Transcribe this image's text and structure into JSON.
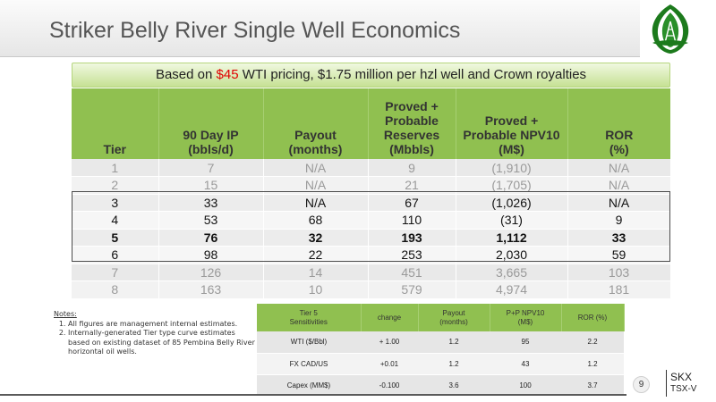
{
  "title": "Striker Belly River Single Well Economics",
  "banner": {
    "prefix": "Based on ",
    "price": "$45",
    "suffix": " WTI pricing, $1.75 million per hzl well and Crown royalties"
  },
  "colors": {
    "header_green": "#90c050",
    "price_red": "#e00000"
  },
  "main_table": {
    "headers": [
      "Tier",
      "90 Day IP\n(bbls/d)",
      "Payout\n(months)",
      "Proved +\nProbable\nReserves\n(Mbbls)",
      "Proved +\nProbable NPV10\n(M$)",
      "ROR\n(%)"
    ],
    "rows": [
      [
        "1",
        "7",
        "N/A",
        "9",
        "(1,910)",
        "N/A"
      ],
      [
        "2",
        "15",
        "N/A",
        "21",
        "(1,705)",
        "N/A"
      ],
      [
        "3",
        "33",
        "N/A",
        "67",
        "(1,026)",
        "N/A"
      ],
      [
        "4",
        "53",
        "68",
        "110",
        "(31)",
        "9"
      ],
      [
        "5",
        "76",
        "32",
        "193",
        "1,112",
        "33"
      ],
      [
        "6",
        "98",
        "22",
        "253",
        "2,030",
        "59"
      ],
      [
        "7",
        "126",
        "14",
        "451",
        "3,665",
        "103"
      ],
      [
        "8",
        "163",
        "10",
        "579",
        "4,974",
        "181"
      ]
    ]
  },
  "notes": {
    "title": "Notes:",
    "items": [
      "All figures are management internal estimates.",
      "Internally-generated Tier type curve estimates based on existing dataset of 85 Pembina Belly River horizontal oil wells."
    ]
  },
  "sensitivity_table": {
    "headers": [
      "Tier 5\nSensitivities",
      "change",
      "Payout\n(months)",
      "P+P NPV10\n(M$)",
      "ROR (%)"
    ],
    "rows": [
      [
        "WTI ($/Bbl)",
        "+ 1.00",
        "1.2",
        "95",
        "2.2"
      ],
      [
        "FX CAD/US",
        "+0.01",
        "1.2",
        "43",
        "1.2"
      ],
      [
        "Capex (MM$)",
        "-0.100",
        "3.6",
        "100",
        "3.7"
      ]
    ]
  },
  "footer": {
    "page_number": "9",
    "ticker": "SKX",
    "exchange": "TSX-V"
  }
}
